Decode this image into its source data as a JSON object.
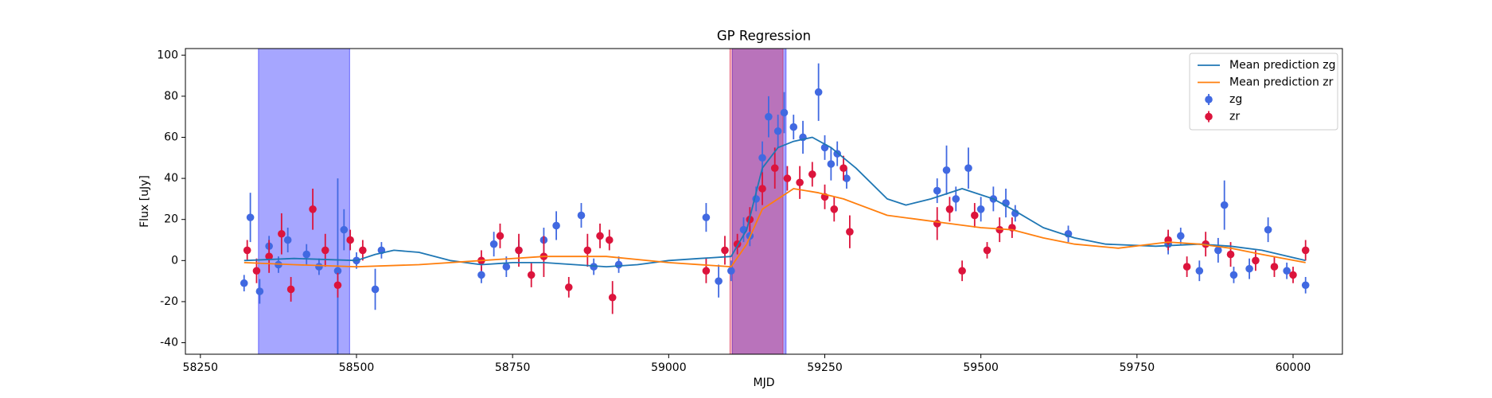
{
  "chart_data": {
    "type": "errorbar",
    "title": "GP Regression",
    "xlabel": "MJD",
    "ylabel": "Flux [uJy]",
    "xlim": [
      58226,
      60079
    ],
    "ylim": [
      -45.6,
      103.2
    ],
    "xticks": [
      58250,
      58500,
      58750,
      59000,
      59250,
      59500,
      59750,
      60000
    ],
    "yticks": [
      -40,
      -20,
      0,
      20,
      40,
      60,
      80,
      100
    ],
    "legend": "upper right",
    "spans": [
      {
        "xlim": [
          58343,
          58489
        ],
        "color": "#0000ff"
      },
      {
        "xlim": [
          59102,
          59188
        ],
        "color": "#0000ff"
      },
      {
        "xlim": [
          59098,
          59183
        ],
        "color": "#dc143c"
      }
    ],
    "lines": [
      {
        "name": "Mean prediction zg",
        "color": "#1f77b4",
        "x": [
          58320,
          58400,
          58500,
          58530,
          58560,
          58600,
          58650,
          58700,
          58750,
          58800,
          58850,
          58900,
          58950,
          59000,
          59050,
          59100,
          59125,
          59150,
          59175,
          59200,
          59230,
          59260,
          59300,
          59350,
          59380,
          59420,
          59470,
          59520,
          59550,
          59600,
          59650,
          59700,
          59780,
          59850,
          59900,
          59950,
          60020
        ],
        "values": [
          0,
          1,
          0,
          3,
          5,
          4,
          0,
          -2,
          -1,
          -1,
          -2,
          -3,
          -2,
          0,
          1,
          2,
          15,
          45,
          55,
          58,
          60,
          55,
          45,
          30,
          27,
          30,
          35,
          30,
          25,
          16,
          11,
          8,
          7,
          8,
          7,
          5,
          0
        ]
      },
      {
        "name": "Mean prediction zr",
        "color": "#ff7f0e",
        "x": [
          58320,
          58400,
          58500,
          58600,
          58700,
          58800,
          58900,
          59000,
          59100,
          59125,
          59150,
          59200,
          59240,
          59280,
          59350,
          59400,
          59450,
          59500,
          59550,
          59600,
          59650,
          59720,
          59800,
          59850,
          59900,
          59950,
          60020
        ],
        "values": [
          -1,
          -2,
          -3,
          -2,
          0,
          2,
          2,
          -1,
          -3,
          8,
          25,
          35,
          33,
          30,
          22,
          20,
          18,
          16,
          15,
          11,
          8,
          6,
          9,
          8,
          6,
          3,
          -1
        ]
      }
    ],
    "series": [
      {
        "name": "zg",
        "color": "#4169e1",
        "x": [
          58320,
          58330,
          58345,
          58360,
          58375,
          58390,
          58420,
          58440,
          58470,
          58480,
          58500,
          58530,
          58540,
          58700,
          58720,
          58740,
          58760,
          58800,
          58820,
          58860,
          58880,
          58920,
          59060,
          59080,
          59100,
          59120,
          59130,
          59140,
          59150,
          59160,
          59175,
          59185,
          59200,
          59215,
          59240,
          59250,
          59260,
          59270,
          59285,
          59430,
          59445,
          59460,
          59480,
          59500,
          59520,
          59540,
          59555,
          59640,
          59800,
          59820,
          59850,
          59880,
          59890,
          59905,
          59930,
          59960,
          59990,
          60020
        ],
        "values": [
          -11,
          21,
          -15,
          7,
          -2,
          10,
          3,
          -3,
          -5,
          15,
          0,
          -14,
          5,
          -7,
          8,
          -3,
          5,
          10,
          17,
          22,
          -3,
          -2,
          21,
          -10,
          -5,
          15,
          12,
          30,
          50,
          70,
          63,
          72,
          65,
          60,
          82,
          55,
          47,
          52,
          40,
          34,
          44,
          30,
          45,
          25,
          30,
          28,
          23,
          13,
          8,
          12,
          -5,
          5,
          27,
          -7,
          -4,
          15,
          -5,
          -12
        ],
        "errors": [
          4,
          12,
          6,
          5,
          4,
          6,
          5,
          4,
          45,
          10,
          4,
          10,
          4,
          4,
          6,
          5,
          5,
          6,
          7,
          6,
          4,
          4,
          7,
          8,
          5,
          6,
          5,
          6,
          8,
          10,
          8,
          10,
          6,
          8,
          14,
          6,
          8,
          6,
          5,
          6,
          12,
          6,
          10,
          6,
          6,
          7,
          4,
          4,
          5,
          4,
          5,
          6,
          12,
          4,
          5,
          6,
          4,
          4
        ]
      },
      {
        "name": "zr",
        "color": "#dc143c",
        "x": [
          58325,
          58340,
          58360,
          58380,
          58395,
          58430,
          58450,
          58470,
          58490,
          58510,
          58700,
          58730,
          58760,
          58780,
          58800,
          58840,
          58870,
          58890,
          58905,
          58910,
          59060,
          59090,
          59110,
          59130,
          59150,
          59170,
          59190,
          59210,
          59230,
          59250,
          59265,
          59280,
          59290,
          59430,
          59450,
          59470,
          59490,
          59510,
          59530,
          59550,
          59800,
          59830,
          59860,
          59900,
          59940,
          59970,
          60000,
          60020
        ],
        "values": [
          5,
          -5,
          2,
          13,
          -14,
          25,
          5,
          -12,
          10,
          5,
          0,
          12,
          5,
          -7,
          2,
          -13,
          5,
          12,
          10,
          -18,
          -5,
          5,
          8,
          20,
          35,
          45,
          40,
          38,
          42,
          31,
          25,
          45,
          14,
          18,
          25,
          -5,
          22,
          5,
          15,
          16,
          10,
          -3,
          8,
          3,
          0,
          -3,
          -7,
          5
        ],
        "errors": [
          5,
          6,
          8,
          10,
          6,
          10,
          8,
          6,
          5,
          5,
          5,
          6,
          8,
          6,
          10,
          5,
          8,
          6,
          5,
          8,
          6,
          7,
          5,
          6,
          8,
          10,
          6,
          8,
          6,
          6,
          6,
          6,
          8,
          8,
          6,
          5,
          6,
          4,
          6,
          5,
          5,
          5,
          6,
          6,
          5,
          5,
          4,
          5
        ]
      }
    ]
  }
}
